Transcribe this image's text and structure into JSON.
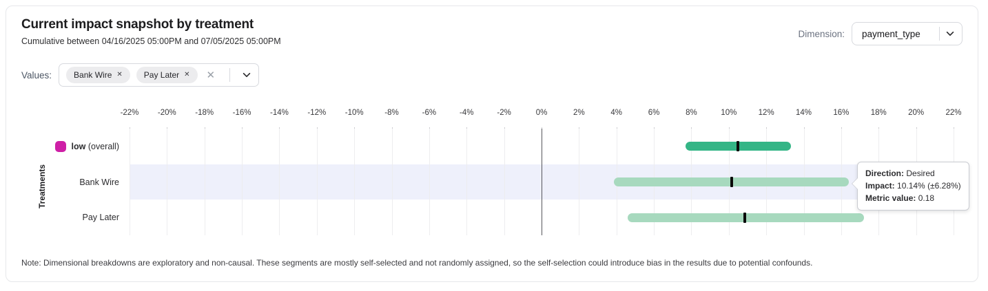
{
  "header": {
    "title": "Current impact snapshot by treatment",
    "subtitle": "Cumulative between 04/16/2025 05:00PM and 07/05/2025 05:00PM",
    "dimension_label": "Dimension:",
    "dimension_value": "payment_type"
  },
  "filters": {
    "values_label": "Values:",
    "chips": [
      {
        "label": "Bank Wire"
      },
      {
        "label": "Pay Later"
      }
    ]
  },
  "chart_data": {
    "type": "bar",
    "subtype": "horizontal-confidence-interval",
    "ylabel": "Treatments",
    "x_unit": "%",
    "xlim": [
      -22,
      22
    ],
    "x_ticks": [
      -22,
      -20,
      -18,
      -16,
      -14,
      -12,
      -10,
      -8,
      -6,
      -4,
      -2,
      0,
      2,
      4,
      6,
      8,
      10,
      12,
      14,
      16,
      18,
      20,
      22
    ],
    "grid": true,
    "zero_line": 0,
    "rows": [
      {
        "label": "low",
        "suffix": "(overall)",
        "legend_color": "#ce1fa6",
        "impact_pct": 10.5,
        "ci_low_pct": 7.7,
        "ci_high_pct": 13.3,
        "bar_color": "#34b586",
        "highlighted": false
      },
      {
        "label": "Bank Wire",
        "suffix": "",
        "legend_color": "",
        "impact_pct": 10.14,
        "ci_low_pct": 3.86,
        "ci_high_pct": 16.42,
        "bar_color": "#a7d9be",
        "highlighted": true
      },
      {
        "label": "Pay Later",
        "suffix": "",
        "legend_color": "",
        "impact_pct": 10.85,
        "ci_low_pct": 4.6,
        "ci_high_pct": 17.2,
        "bar_color": "#a7d9be",
        "highlighted": false
      }
    ]
  },
  "tooltip": {
    "attached_to": "Bank Wire",
    "direction_label": "Direction:",
    "direction_value": "Desired",
    "impact_label": "Impact:",
    "impact_value": "10.14% (±6.28%)",
    "metric_label": "Metric value:",
    "metric_value": "0.18"
  },
  "note": "Note: Dimensional breakdowns are exploratory and non-causal. These segments are mostly self-selected and not randomly assigned, so the self-selection could introduce bias in the results due to potential confounds.",
  "colors": {
    "row_highlight": "#eef0fb",
    "gridline": "#ededef",
    "zero_line": "#55555a",
    "marker": "#0b0b0b",
    "dark_green": "#34b586",
    "light_green": "#a7d9be",
    "legend_magenta": "#ce1fa6"
  }
}
